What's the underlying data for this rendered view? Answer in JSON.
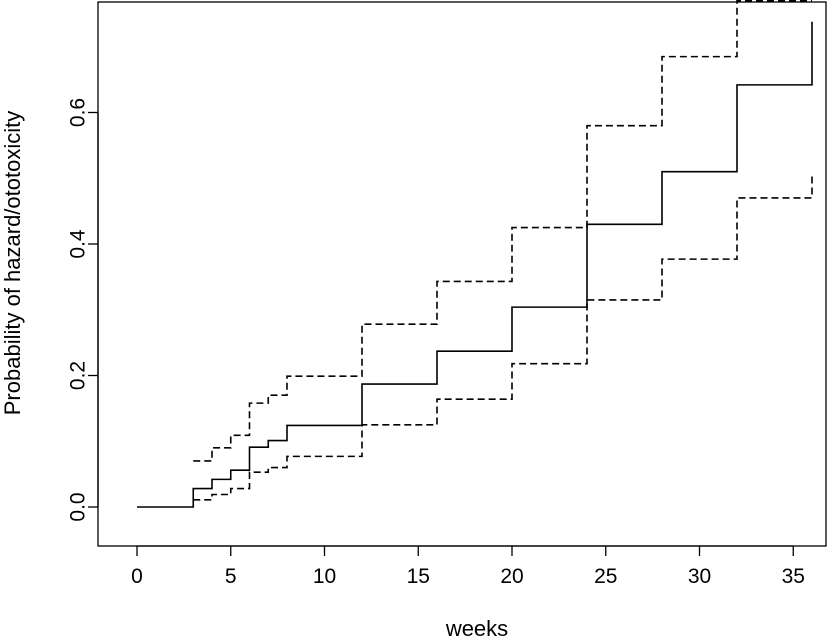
{
  "chart_data": {
    "type": "line",
    "step": true,
    "title": "",
    "xlabel": "weeks",
    "ylabel": "Probability of hazard/ototoxicity",
    "xlim": [
      0,
      36
    ],
    "ylim": [
      0,
      0.75
    ],
    "xticks": [
      "0",
      "5",
      "10",
      "15",
      "20",
      "25",
      "30",
      "35"
    ],
    "yticks": [
      "0.0",
      "0.2",
      "0.4",
      "0.6"
    ],
    "grid": false,
    "legend": "none",
    "series": [
      {
        "line": "solid",
        "x": [
          0,
          3,
          4,
          5,
          6,
          7,
          8,
          12,
          16,
          20,
          24,
          28,
          32,
          36
        ],
        "y": [
          0,
          0.028,
          0.042,
          0.056,
          0.091,
          0.101,
          0.124,
          0.187,
          0.237,
          0.304,
          0.43,
          0.51,
          0.642,
          0.738
        ]
      },
      {
        "line": "dashed",
        "x": [
          3,
          4,
          5,
          6,
          7,
          8,
          12,
          16,
          20,
          24,
          28,
          32,
          36
        ],
        "y": [
          0.07,
          0.09,
          0.109,
          0.158,
          0.17,
          0.199,
          0.278,
          0.343,
          0.425,
          0.58,
          0.685,
          0.77,
          0.77
        ]
      },
      {
        "line": "dashed",
        "x": [
          3,
          4,
          5,
          6,
          7,
          8,
          12,
          16,
          20,
          24,
          28,
          32,
          36
        ],
        "y": [
          0.011,
          0.019,
          0.028,
          0.053,
          0.06,
          0.077,
          0.125,
          0.164,
          0.218,
          0.315,
          0.377,
          0.47,
          0.508
        ]
      }
    ]
  }
}
